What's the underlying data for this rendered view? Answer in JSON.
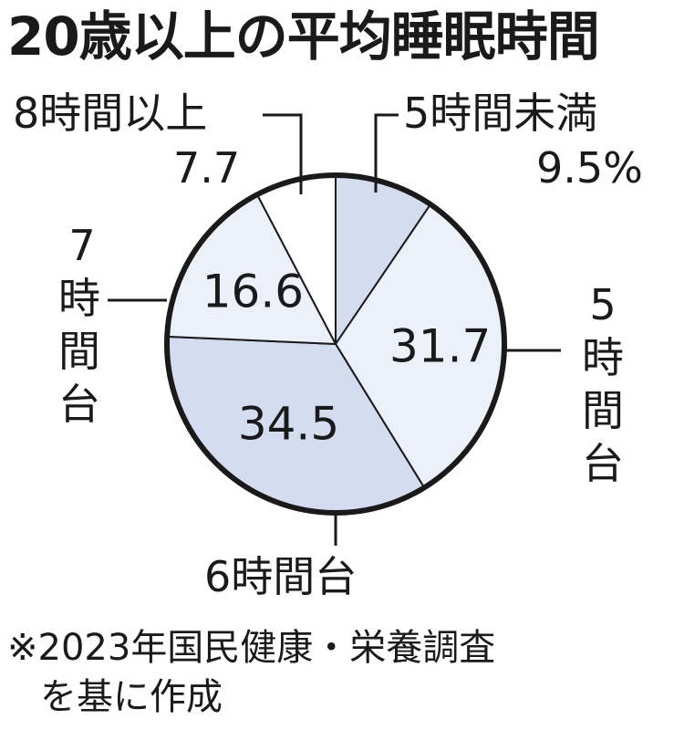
{
  "title": "20歳以上の平均睡眠時間",
  "chart_data": {
    "type": "pie",
    "title": "20歳以上の平均睡眠時間",
    "slices": [
      {
        "label": "5時間未満",
        "value": 9.5,
        "display": "9.5%",
        "color": "#d4dcef"
      },
      {
        "label": "5時間台",
        "value": 31.7,
        "display": "31.7",
        "color": "#ecf0f8"
      },
      {
        "label": "6時間台",
        "value": 34.5,
        "display": "34.5",
        "color": "#d4dcef"
      },
      {
        "label": "7時間台",
        "value": 16.6,
        "display": "16.6",
        "color": "#ecf0f8"
      },
      {
        "label": "8時間以上",
        "value": 7.7,
        "display": "7.7",
        "color": "#ffffff"
      }
    ],
    "start": "12 o'clock",
    "direction": "clockwise"
  },
  "labels": {
    "under5": "5時間未満",
    "under5_value": "9.5%",
    "over8": "8時間以上",
    "over8_value": "7.7",
    "h5": "5時間台",
    "h6": "6時間台",
    "h7_num": "7",
    "h7": "時間台"
  },
  "note": {
    "line1": "※2023年国民健康・栄養調査",
    "line2": "を基に作成"
  }
}
